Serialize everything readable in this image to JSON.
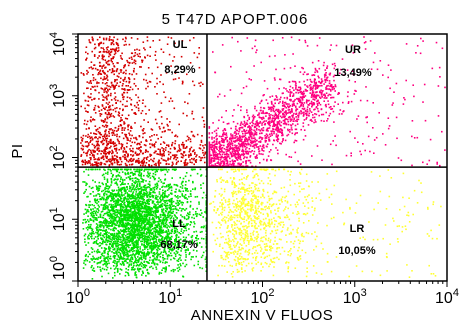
{
  "chart_data": {
    "type": "scatter",
    "title": "5 T47D APOPT.006",
    "xlabel": "ANNEXIN V FLUOS",
    "ylabel": "PI",
    "x_scale": "log",
    "y_scale": "log",
    "xlim": [
      1,
      10000
    ],
    "ylim": [
      1,
      10000
    ],
    "x_ticks": [
      {
        "base": "10",
        "exp": "0"
      },
      {
        "base": "10",
        "exp": "1"
      },
      {
        "base": "10",
        "exp": "2"
      },
      {
        "base": "10",
        "exp": "3"
      },
      {
        "base": "10",
        "exp": "4"
      }
    ],
    "y_ticks": [
      {
        "base": "10",
        "exp": "0"
      },
      {
        "base": "10",
        "exp": "1"
      },
      {
        "base": "10",
        "exp": "2"
      },
      {
        "base": "10",
        "exp": "3"
      },
      {
        "base": "10",
        "exp": "4"
      }
    ],
    "gate": {
      "x": 25,
      "y": 70
    },
    "quadrants": [
      {
        "name": "UL",
        "percent": "8,29%",
        "color": "#d40000"
      },
      {
        "name": "UR",
        "percent": "13,49%",
        "color": "#ff0080"
      },
      {
        "name": "LL",
        "percent": "68,17%",
        "color": "#00e000"
      },
      {
        "name": "LR",
        "percent": "10,05%",
        "color": "#ffff33"
      }
    ],
    "grid": false
  }
}
